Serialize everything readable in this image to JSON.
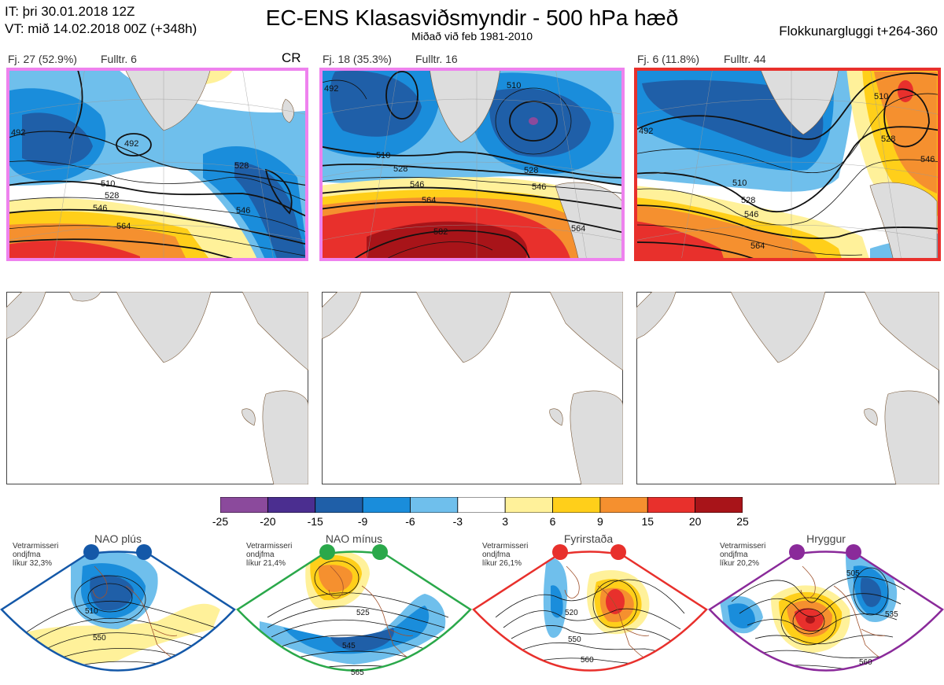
{
  "header": {
    "it_line": "IT: þri 30.01.2018 12Z",
    "vt_line": "VT: mið 14.02.2018 00Z  (+348h)",
    "title": "EC-ENS Klasasviðsmyndir - 500 hPa hæð",
    "subtitle": "Miðað við feb 1981-2010",
    "window": "Flokkunargluggi t+264-360"
  },
  "clusters": [
    {
      "label": "Fj. 27 (52.9%)",
      "fulltr": "Fulltr. 6",
      "tag": "CR",
      "frame_color": "#ee82ee",
      "contour_labels": [
        "492",
        "492",
        "510",
        "528",
        "546",
        "564",
        "528",
        "546"
      ]
    },
    {
      "label": "Fj. 18 (35.3%)",
      "fulltr": "Fulltr. 16",
      "tag": "",
      "frame_color": "#ee82ee",
      "contour_labels": [
        "492",
        "510",
        "510",
        "528",
        "546",
        "564",
        "582",
        "528",
        "546",
        "564"
      ]
    },
    {
      "label": "Fj. 6 (11.8%)",
      "fulltr": "Fulltr. 44",
      "tag": "",
      "frame_color": "#e8302c",
      "contour_labels": [
        "492",
        "510",
        "528",
        "546",
        "564",
        "510",
        "528",
        "546"
      ]
    }
  ],
  "chart_data": {
    "type": "heatmap",
    "colorbar": {
      "ticks": [
        "-25",
        "-20",
        "-15",
        "-9",
        "-6",
        "-3",
        "3",
        "6",
        "9",
        "15",
        "20",
        "25"
      ],
      "colors": [
        "#8b4a9c",
        "#4b2e90",
        "#1f5fa8",
        "#1a8ddb",
        "#6fbfec",
        "#ffffff",
        "#fff19a",
        "#ffcf1a",
        "#f5902f",
        "#e8302c",
        "#a81419"
      ]
    }
  },
  "regimes": [
    {
      "name": "NAO plús",
      "info1": "Vetrarmisseri",
      "info2": "ondjfma",
      "info3": "líkur 32,3%",
      "color": "#1458a8",
      "contour_labels": [
        "510",
        "550"
      ]
    },
    {
      "name": "NAO mínus",
      "info1": "Vetrarmisseri",
      "info2": "ondjfma",
      "info3": "líkur 21,4%",
      "color": "#2aa84a",
      "contour_labels": [
        "525",
        "545",
        "565"
      ]
    },
    {
      "name": "Fyrirstaða",
      "info1": "Vetrarmisseri",
      "info2": "ondjfma",
      "info3": "líkur 26,1%",
      "color": "#e8302c",
      "contour_labels": [
        "520",
        "550",
        "560"
      ]
    },
    {
      "name": "Hryggur",
      "info1": "Vetrarmisseri",
      "info2": "ondjfma",
      "info3": "líkur 20,2%",
      "color": "#8a2a9a",
      "contour_labels": [
        "505",
        "535",
        "560"
      ]
    }
  ]
}
